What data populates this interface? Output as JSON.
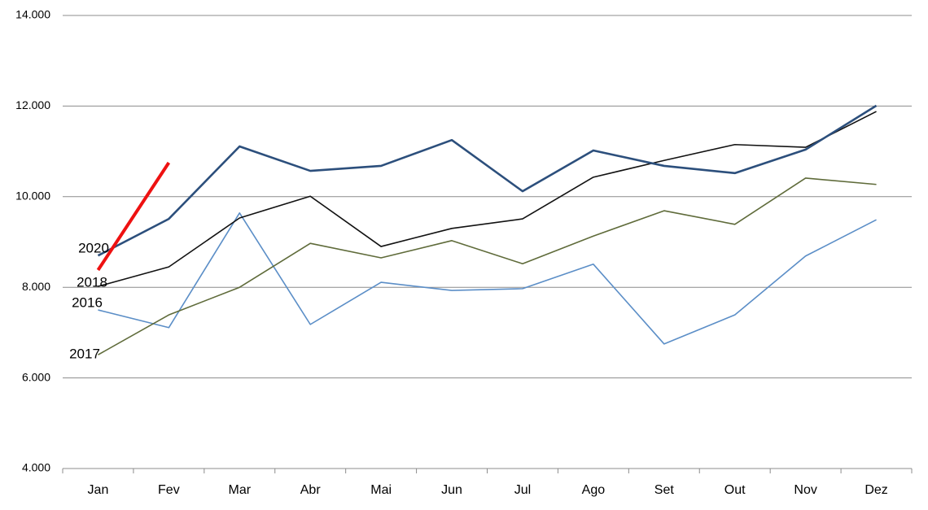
{
  "chart_data": {
    "type": "line",
    "categories": [
      "Jan",
      "Fev",
      "Mar",
      "Abr",
      "Mai",
      "Jun",
      "Jul",
      "Ago",
      "Set",
      "Out",
      "Nov",
      "Dez"
    ],
    "series": [
      {
        "name": "2016",
        "color": "#5b8ec7",
        "values": [
          7500,
          7110,
          9640,
          7180,
          8110,
          7930,
          7970,
          8510,
          6750,
          7390,
          8690,
          9490
        ]
      },
      {
        "name": "2017",
        "color": "#5f6b3a",
        "values": [
          6510,
          7390,
          8000,
          8970,
          8650,
          9030,
          8520,
          9130,
          9690,
          9390,
          10410,
          10270
        ]
      },
      {
        "name": "2018",
        "color": "#111111",
        "values": [
          8020,
          8450,
          9530,
          10010,
          8900,
          9300,
          9510,
          10430,
          10800,
          11150,
          11090,
          11880
        ]
      },
      {
        "color": "#2c4f7c",
        "values": [
          8700,
          9510,
          11110,
          10570,
          10680,
          11250,
          10120,
          11020,
          10680,
          10520,
          11040,
          12010
        ]
      },
      {
        "name": "2020",
        "color": "#ee1111",
        "values": [
          8380,
          10750,
          null,
          null,
          null,
          null,
          null,
          null,
          null,
          null,
          null,
          null
        ]
      }
    ],
    "ylim": [
      4000,
      14000
    ],
    "yticks": [
      {
        "value": 4000,
        "label": "4.000"
      },
      {
        "value": 6000,
        "label": "6.000"
      },
      {
        "value": 8000,
        "label": "8.000"
      },
      {
        "value": 10000,
        "label": "10.000"
      },
      {
        "value": 12000,
        "label": "12.000"
      },
      {
        "value": 14000,
        "label": "14.000"
      }
    ],
    "grid": true
  }
}
